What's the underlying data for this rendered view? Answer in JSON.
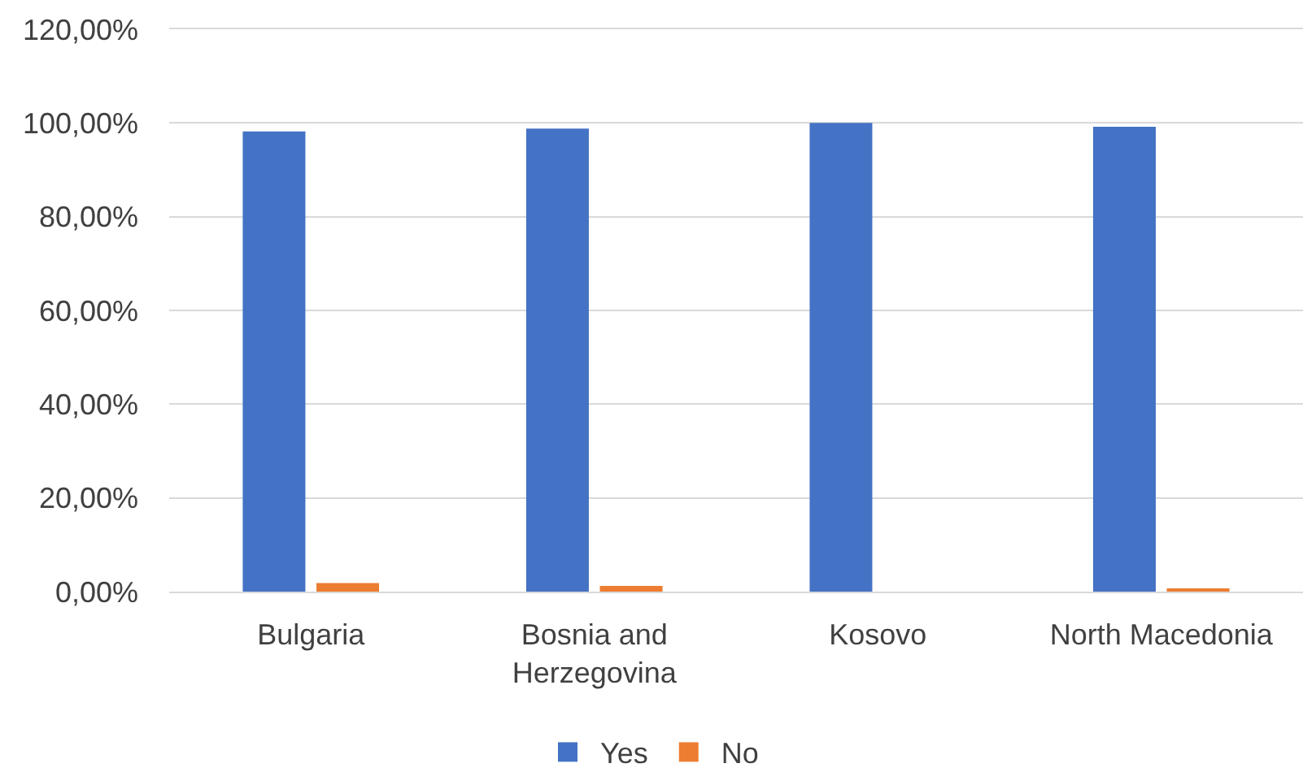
{
  "chart_data": {
    "type": "bar",
    "categories": [
      "Bulgaria",
      "Bosnia and Herzegovina",
      "Kosovo",
      "North Macedonia"
    ],
    "series": [
      {
        "name": "Yes",
        "color": "#4472c4",
        "values": [
          98.2,
          98.8,
          100,
          99.2
        ]
      },
      {
        "name": "No",
        "color": "#ed7d31",
        "values": [
          1.8,
          1.2,
          0,
          0.4
        ]
      }
    ],
    "ylim": [
      0,
      120
    ],
    "yticks": [
      {
        "value": 0,
        "label": "0,00%"
      },
      {
        "value": 20,
        "label": "20,00%"
      },
      {
        "value": 40,
        "label": "40,00%"
      },
      {
        "value": 60,
        "label": "60,00%"
      },
      {
        "value": 80,
        "label": "80,00%"
      },
      {
        "value": 100,
        "label": "100,00%"
      },
      {
        "value": 120,
        "label": "120,00%"
      }
    ],
    "grid": "y",
    "legend": "bottom"
  }
}
